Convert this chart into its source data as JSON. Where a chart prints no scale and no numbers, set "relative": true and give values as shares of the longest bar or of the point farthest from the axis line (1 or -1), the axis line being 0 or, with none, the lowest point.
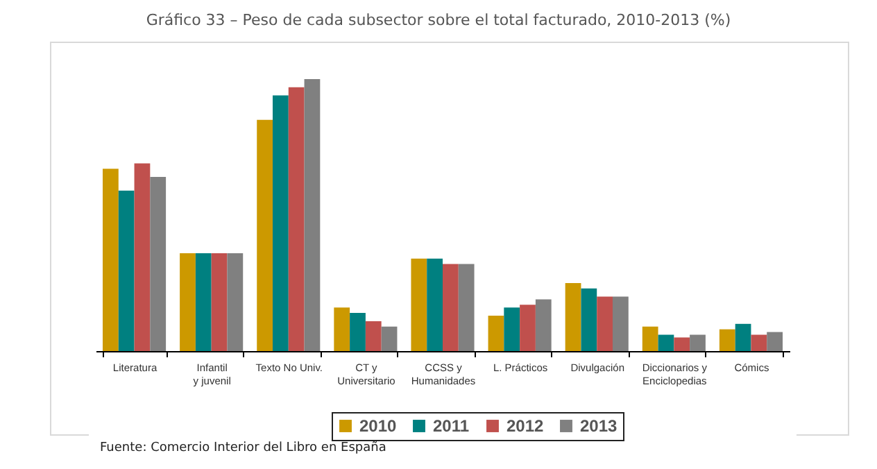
{
  "chart_data": {
    "type": "bar",
    "title": "Gráfico 33 – Peso de cada subsector sobre el total facturado, 2010-2013 (%)",
    "categories": [
      "Literatura",
      "Infantil y juvenil",
      "Texto No Univ.",
      "CT y Universitario",
      "CCSS y Humanidades",
      "L. Prácticos",
      "Divulgación",
      "Diccionarios y Enciclopedias",
      "Cómics"
    ],
    "relative": true,
    "series": [
      {
        "name": "2010",
        "color": "#cc9900",
        "values": [
          0.67,
          0.36,
          0.85,
          0.16,
          0.34,
          0.13,
          0.25,
          0.09,
          0.08
        ]
      },
      {
        "name": "2011",
        "color": "#008080",
        "values": [
          0.59,
          0.36,
          0.94,
          0.14,
          0.34,
          0.16,
          0.23,
          0.06,
          0.1
        ]
      },
      {
        "name": "2012",
        "color": "#c0504d",
        "values": [
          0.69,
          0.36,
          0.97,
          0.11,
          0.32,
          0.17,
          0.2,
          0.05,
          0.06
        ]
      },
      {
        "name": "2013",
        "color": "#808080",
        "values": [
          0.64,
          0.36,
          1,
          0.09,
          0.32,
          0.19,
          0.2,
          0.06,
          0.07
        ]
      }
    ],
    "legend": "bottom",
    "annotations": [
      "Fuente: Comercio Interior del Libro en España"
    ]
  }
}
